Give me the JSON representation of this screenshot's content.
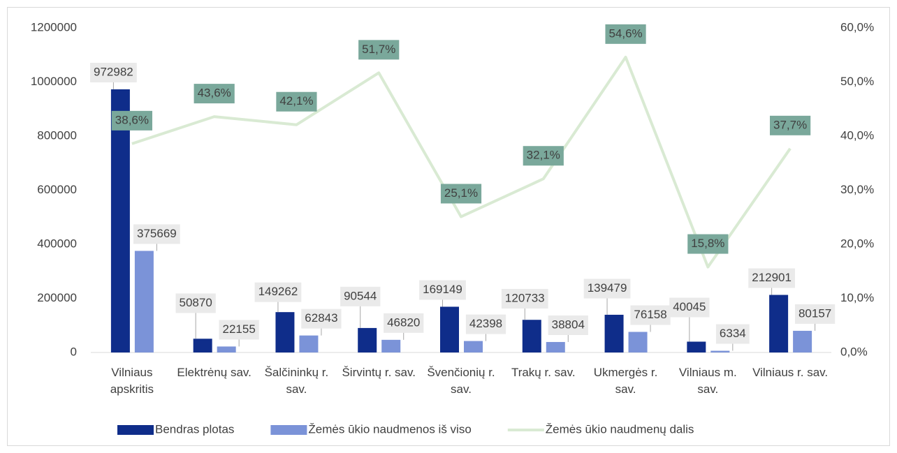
{
  "chart_data": {
    "type": "bar_line",
    "categories": [
      "Vilniaus apskritis",
      "Elektrėnų sav.",
      "Šalčininkų r. sav.",
      "Širvintų r. sav.",
      "Švenčionių r. sav.",
      "Trakų r. sav.",
      "Ukmergės r. sav.",
      "Vilniaus m. sav.",
      "Vilniaus r. sav."
    ],
    "series": [
      {
        "name": "Bendras plotas",
        "color": "#0f2d8a",
        "values": [
          972982,
          50870,
          149262,
          90544,
          169149,
          120733,
          139479,
          40045,
          212901
        ]
      },
      {
        "name": "Žemės ūkio naudmenos iš viso",
        "color": "#7b93d8",
        "values": [
          375669,
          22155,
          62843,
          46820,
          42398,
          38804,
          76158,
          6334,
          80157
        ]
      },
      {
        "name": "Žemės ūkio naudmenų dalis",
        "color": "#d9ead3",
        "axis": "y2",
        "values": [
          38.6,
          43.6,
          42.1,
          51.7,
          25.1,
          32.1,
          54.6,
          15.8,
          37.7
        ],
        "value_labels": [
          "38,6%",
          "43,6%",
          "42,1%",
          "51,7%",
          "25,1%",
          "32,1%",
          "54,6%",
          "15,8%",
          "37,7%"
        ]
      }
    ],
    "ylim": [
      0,
      1200000
    ],
    "yticks": [
      0,
      200000,
      400000,
      600000,
      800000,
      1000000,
      1200000
    ],
    "y2lim": [
      0,
      60
    ],
    "y2ticks": [
      {
        "value": 0,
        "label": "0,0%"
      },
      {
        "value": 10,
        "label": "10,0%"
      },
      {
        "value": 20,
        "label": "20,0%"
      },
      {
        "value": 30,
        "label": "30,0%"
      },
      {
        "value": 40,
        "label": "40,0%"
      },
      {
        "value": 50,
        "label": "50,0%"
      },
      {
        "value": 60,
        "label": "60,0%"
      }
    ],
    "grid": false,
    "legend": "bottom"
  }
}
